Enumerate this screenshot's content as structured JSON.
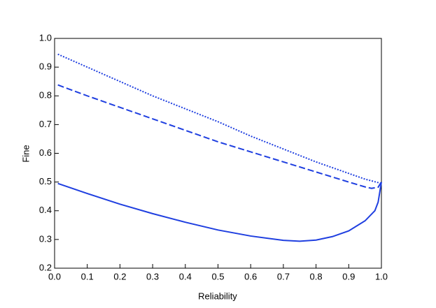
{
  "chart_data": {
    "type": "line",
    "xlabel": "Reliability",
    "ylabel": "Fine",
    "xlim": [
      0,
      1
    ],
    "ylim": [
      0.2,
      1
    ],
    "xticks": [
      {
        "value": 0,
        "label": "0.0"
      },
      0.1,
      0.2,
      0.3,
      0.4,
      0.5,
      0.6,
      0.7,
      0.8,
      0.9,
      {
        "value": 1,
        "label": "1.0"
      }
    ],
    "yticks": [
      0.2,
      0.3,
      0.4,
      0.5,
      0.6,
      0.7,
      0.8,
      0.9,
      {
        "value": 1,
        "label": "1.0"
      }
    ],
    "series": [
      {
        "color": "#1f3fe0",
        "dash": "solid",
        "x": [
          0.01,
          0.1,
          0.2,
          0.3,
          0.4,
          0.5,
          0.6,
          0.7,
          0.75,
          0.8,
          0.85,
          0.9,
          0.95,
          0.98,
          0.99,
          1.0
        ],
        "values": [
          0.495,
          0.46,
          0.423,
          0.39,
          0.36,
          0.333,
          0.312,
          0.297,
          0.294,
          0.298,
          0.31,
          0.33,
          0.365,
          0.4,
          0.43,
          0.5
        ]
      },
      {
        "color": "#1f3fe0",
        "dash": "dashed",
        "x": [
          0.01,
          0.1,
          0.2,
          0.3,
          0.4,
          0.5,
          0.6,
          0.7,
          0.8,
          0.9,
          0.95,
          0.97,
          0.99,
          1.0
        ],
        "values": [
          0.838,
          0.8,
          0.76,
          0.72,
          0.68,
          0.64,
          0.605,
          0.57,
          0.535,
          0.5,
          0.483,
          0.478,
          0.482,
          0.5
        ]
      },
      {
        "color": "#1f3fe0",
        "dash": "dotted",
        "x": [
          0.01,
          0.1,
          0.2,
          0.3,
          0.4,
          0.5,
          0.6,
          0.7,
          0.8,
          0.9,
          0.95,
          1.0
        ],
        "values": [
          0.945,
          0.9,
          0.85,
          0.8,
          0.755,
          0.71,
          0.66,
          0.615,
          0.57,
          0.53,
          0.51,
          0.495
        ]
      }
    ]
  }
}
